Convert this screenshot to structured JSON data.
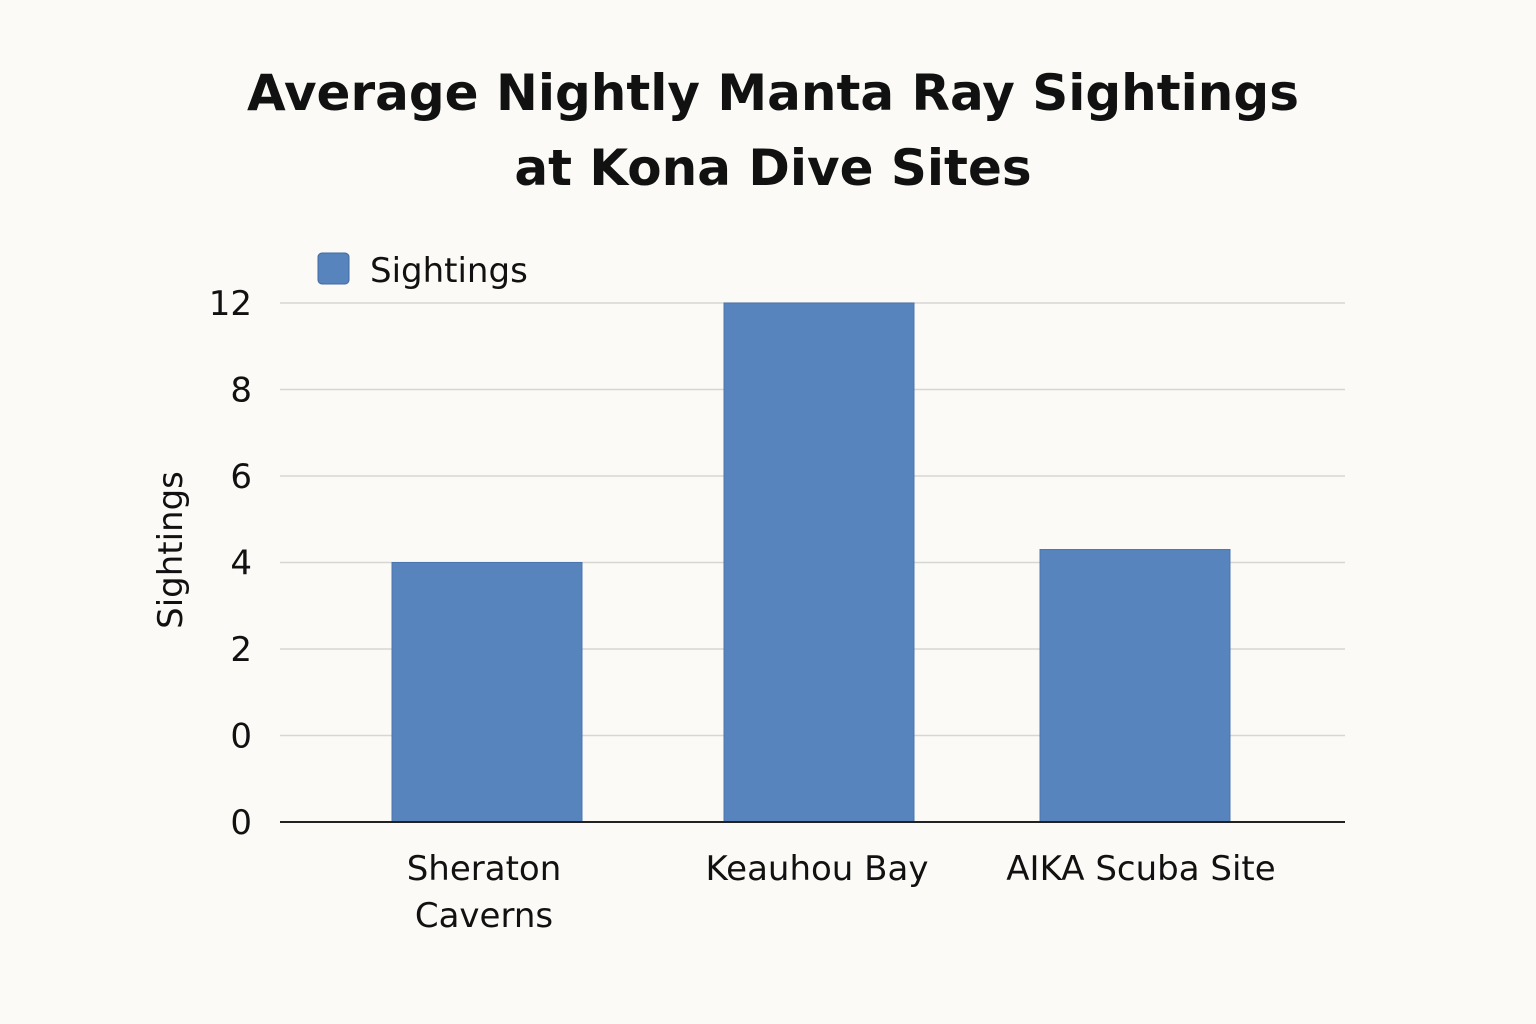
{
  "chart_data": {
    "type": "bar",
    "title_lines": [
      "Average Nightly Manta Ray Sightings",
      "at Kona Dive Sites"
    ],
    "ylabel": "Sightings",
    "xlabel": "",
    "categories": [
      [
        "Sheraton",
        "Caverns"
      ],
      [
        "Keauhou Bay"
      ],
      [
        "AIKA Scuba Site"
      ]
    ],
    "series": [
      {
        "name": "Sightings",
        "values": [
          6,
          12,
          6.3
        ],
        "color": "#5884bd"
      }
    ],
    "y_tick_labels": [
      "0",
      "0",
      "2",
      "4",
      "6",
      "8",
      "12"
    ],
    "ylim": [
      0,
      12
    ],
    "grid": true,
    "legend": "top-left"
  }
}
